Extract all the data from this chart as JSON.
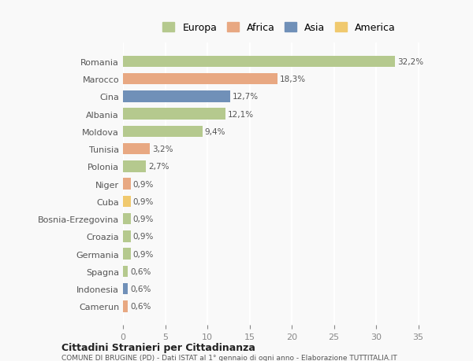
{
  "countries": [
    "Romania",
    "Marocco",
    "Cina",
    "Albania",
    "Moldova",
    "Tunisia",
    "Polonia",
    "Niger",
    "Cuba",
    "Bosnia-Erzegovina",
    "Croazia",
    "Germania",
    "Spagna",
    "Indonesia",
    "Camerun"
  ],
  "values": [
    32.2,
    18.3,
    12.7,
    12.1,
    9.4,
    3.2,
    2.7,
    0.9,
    0.9,
    0.9,
    0.9,
    0.9,
    0.6,
    0.6,
    0.6
  ],
  "labels": [
    "32,2%",
    "18,3%",
    "12,7%",
    "12,1%",
    "9,4%",
    "3,2%",
    "2,7%",
    "0,9%",
    "0,9%",
    "0,9%",
    "0,9%",
    "0,9%",
    "0,6%",
    "0,6%",
    "0,6%"
  ],
  "continents": [
    "Europa",
    "Africa",
    "Asia",
    "Europa",
    "Europa",
    "Africa",
    "Europa",
    "Africa",
    "America",
    "Europa",
    "Europa",
    "Europa",
    "Europa",
    "Asia",
    "Africa"
  ],
  "continent_colors": {
    "Europa": "#b5c98e",
    "Africa": "#e8a882",
    "Asia": "#7090b8",
    "America": "#f0c96e"
  },
  "legend_order": [
    "Europa",
    "Africa",
    "Asia",
    "America"
  ],
  "title1": "Cittadini Stranieri per Cittadinanza",
  "title2": "COMUNE DI BRUGINE (PD) - Dati ISTAT al 1° gennaio di ogni anno - Elaborazione TUTTITALIA.IT",
  "xlim": [
    0,
    37
  ],
  "xticks": [
    0,
    5,
    10,
    15,
    20,
    25,
    30,
    35
  ],
  "background_color": "#f9f9f9",
  "grid_color": "#ffffff",
  "bar_height": 0.65
}
